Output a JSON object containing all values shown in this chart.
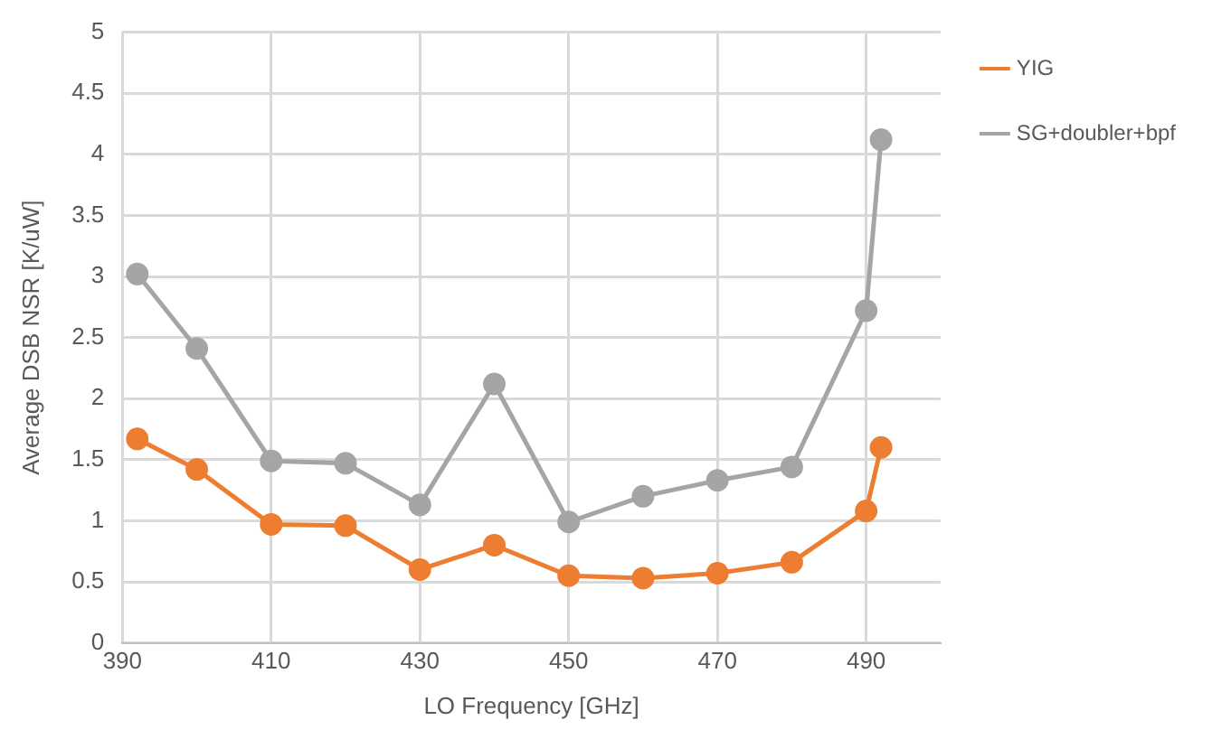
{
  "chart_data": {
    "type": "line",
    "xlabel": "LO Frequency [GHz]",
    "ylabel": "Average DSB NSR [K/uW]",
    "x": [
      392,
      400,
      410,
      420,
      430,
      440,
      450,
      460,
      470,
      480,
      490,
      492
    ],
    "series": [
      {
        "name": "YIG",
        "color": "#ed7d31",
        "values": [
          1.67,
          1.42,
          0.97,
          0.96,
          0.6,
          0.8,
          0.55,
          0.53,
          0.57,
          0.66,
          1.08,
          1.6
        ]
      },
      {
        "name": "SG+doubler+bpf",
        "color": "#a5a5a5",
        "values": [
          3.02,
          2.41,
          1.49,
          1.47,
          1.13,
          2.12,
          0.99,
          1.2,
          1.33,
          1.44,
          2.72,
          4.12
        ]
      }
    ],
    "xlim": [
      390,
      500
    ],
    "xticks": [
      390,
      410,
      430,
      450,
      470,
      490
    ],
    "ylim": [
      0,
      5
    ],
    "yticks": [
      0,
      0.5,
      1,
      1.5,
      2,
      2.5,
      3,
      3.5,
      4,
      4.5,
      5
    ],
    "grid": true,
    "legend": "right",
    "marker": "circle",
    "line_style": "solid"
  }
}
